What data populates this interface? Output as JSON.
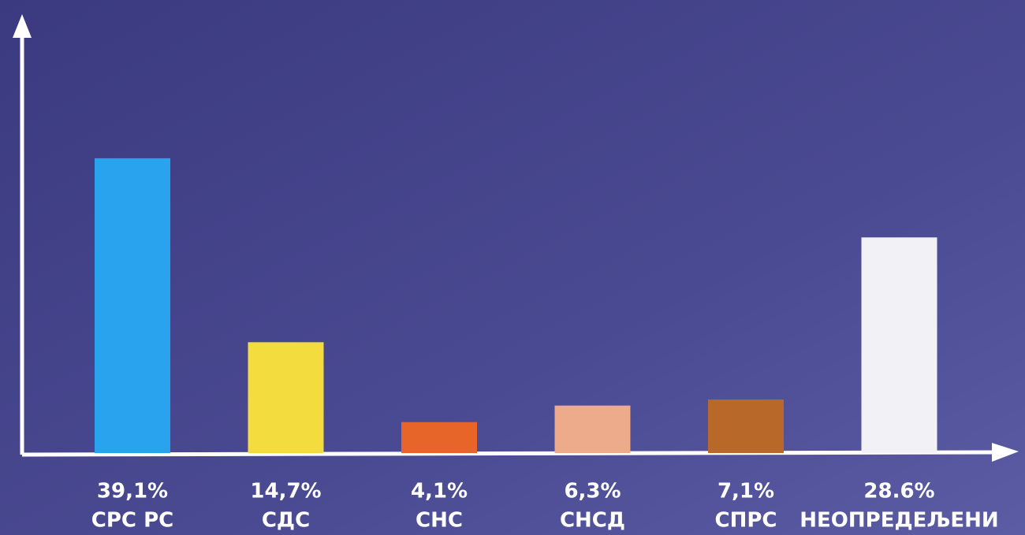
{
  "chart_data": {
    "type": "bar",
    "categories": [
      "СРС РС",
      "СДС",
      "СНС",
      "СНСД",
      "СПРС",
      "НЕОПРЕДЕЉЕНИ"
    ],
    "values": [
      39.1,
      14.7,
      4.1,
      6.3,
      7.1,
      28.6
    ],
    "value_labels": [
      "39,1%",
      "14,7%",
      "4,1%",
      "6,3%",
      "7,1%",
      "28.6%"
    ],
    "colors": [
      "#2aa3ee",
      "#f2dc3e",
      "#e8652a",
      "#eeab8b",
      "#b8692a",
      "#f2f2f6"
    ],
    "ylim": [
      0,
      58
    ]
  }
}
